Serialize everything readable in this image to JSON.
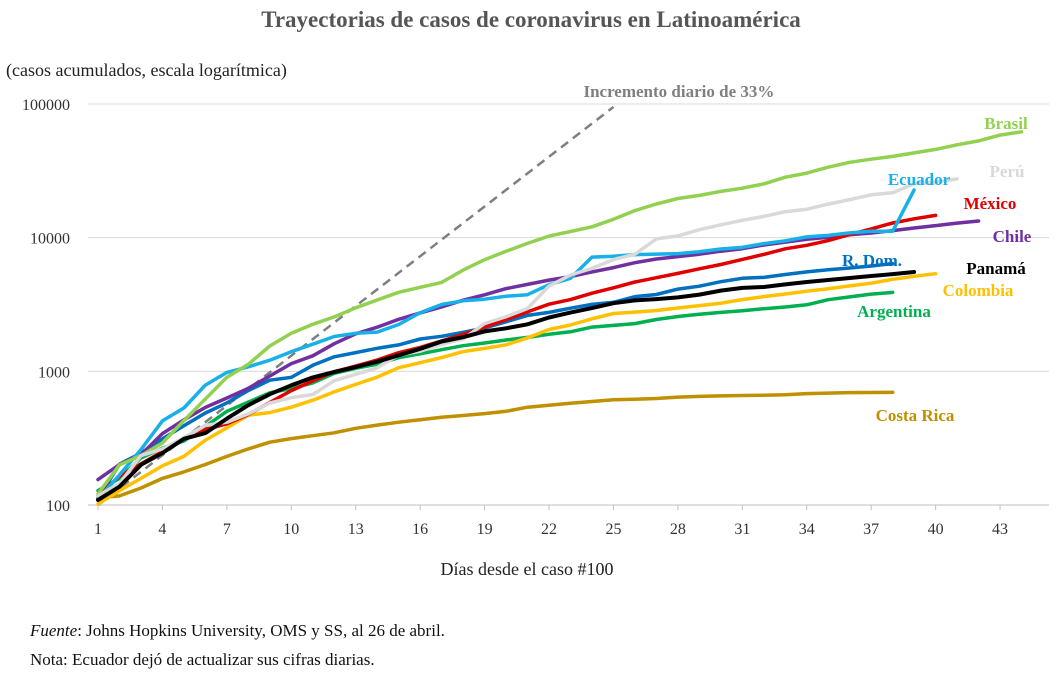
{
  "footer": {
    "source_label": "Fuente",
    "source_text": ": Johns Hopkins University, OMS y SS, al 26 de abril.",
    "note": "Nota: Ecuador dejó de actualizar sus cifras diarias."
  },
  "chart_data": {
    "type": "line",
    "title": "Trayectorias de casos de coronavirus en Latinoamérica",
    "subtitle": "(casos acumulados, escala logarítmica)",
    "xlabel": "Días desde el caso #100",
    "ylabel": "",
    "xlim": [
      1,
      45
    ],
    "ylim": [
      100,
      100000
    ],
    "yscale": "log",
    "x_ticks": [
      1,
      4,
      7,
      10,
      13,
      16,
      19,
      22,
      25,
      28,
      31,
      34,
      37,
      40,
      43
    ],
    "y_ticks": [
      100,
      1000,
      10000,
      100000
    ],
    "y_tick_labels": [
      "100",
      "1000",
      "10000",
      "100000"
    ],
    "grid": "horizontal",
    "reference_line": {
      "label": "Incremento diario de 33%",
      "color": "#7f7f7f",
      "x": [
        1,
        25
      ],
      "y": [
        100,
        95000
      ]
    },
    "series": [
      {
        "name": "Brasil",
        "color": "#92d050",
        "x": [
          1,
          2,
          3,
          4,
          5,
          6,
          7,
          8,
          9,
          10,
          11,
          12,
          13,
          14,
          15,
          16,
          17,
          18,
          19,
          20,
          21,
          22,
          23,
          24,
          25,
          26,
          27,
          28,
          29,
          30,
          31,
          32,
          33,
          34,
          35,
          36,
          37,
          38,
          39,
          40,
          41,
          42,
          43,
          44
        ],
        "y": [
          121,
          200,
          234,
          291,
          428,
          621,
          904,
          1128,
          1546,
          1924,
          2247,
          2554,
          2985,
          3417,
          3904,
          4256,
          4630,
          5717,
          6836,
          7910,
          9056,
          10278,
          11130,
          12056,
          13717,
          15927,
          17857,
          19638,
          20727,
          22192,
          23430,
          25262,
          28320,
          30425,
          33682,
          36658,
          38654,
          40581,
          43079,
          45757,
          49492,
          52995,
          58509,
          62000
        ]
      },
      {
        "name": "Perú",
        "color": "#d9d9d9",
        "x": [
          1,
          2,
          3,
          4,
          5,
          6,
          7,
          8,
          9,
          10,
          11,
          12,
          13,
          14,
          15,
          16,
          17,
          18,
          19,
          20,
          21,
          22,
          23,
          24,
          25,
          26,
          27,
          28,
          29,
          30,
          31,
          32,
          33,
          34,
          35,
          36,
          37,
          38,
          39,
          40,
          41
        ],
        "y": [
          117,
          145,
          234,
          263,
          318,
          395,
          416,
          480,
          580,
          635,
          671,
          852,
          950,
          1065,
          1323,
          1414,
          1595,
          1746,
          2281,
          2561,
          2954,
          4342,
          5256,
          5897,
          6848,
          7519,
          9784,
          10303,
          11475,
          12491,
          13489,
          14420,
          15628,
          16325,
          17837,
          19250,
          20914,
          21648,
          25331,
          26000,
          27517
        ]
      },
      {
        "name": "Ecuador",
        "color": "#17b0e8",
        "x": [
          1,
          2,
          3,
          4,
          5,
          6,
          7,
          8,
          9,
          10,
          11,
          12,
          13,
          14,
          15,
          16,
          17,
          18,
          19,
          20,
          21,
          22,
          23,
          24,
          25,
          26,
          27,
          28,
          29,
          30,
          31,
          32,
          33,
          34,
          35,
          36,
          37,
          38,
          39
        ],
        "y": [
          111,
          168,
          260,
          426,
          532,
          789,
          981,
          1082,
          1211,
          1403,
          1595,
          1823,
          1924,
          1966,
          2240,
          2748,
          3163,
          3368,
          3465,
          3646,
          3747,
          4450,
          4965,
          7161,
          7257,
          7466,
          7529,
          7603,
          7858,
          8225,
          8450,
          9022,
          9468,
          10128,
          10398,
          10850,
          11183,
          11183,
          22719
        ]
      },
      {
        "name": "México",
        "color": "#e00000",
        "x": [
          1,
          2,
          3,
          4,
          5,
          6,
          7,
          8,
          9,
          10,
          11,
          12,
          13,
          14,
          15,
          16,
          17,
          18,
          19,
          20,
          21,
          22,
          23,
          24,
          25,
          26,
          27,
          28,
          29,
          30,
          31,
          32,
          33,
          34,
          35,
          36,
          37,
          38,
          39,
          40
        ],
        "y": [
          118,
          164,
          203,
          251,
          316,
          367,
          405,
          475,
          585,
          717,
          848,
          993,
          1094,
          1215,
          1378,
          1510,
          1688,
          1890,
          2143,
          2439,
          2785,
          3181,
          3441,
          3844,
          4219,
          4661,
          5014,
          5399,
          5847,
          6297,
          6875,
          7497,
          8261,
          8772,
          9501,
          10544,
          11633,
          12872,
          13842,
          14677
        ]
      },
      {
        "name": "Chile",
        "color": "#7030a0",
        "x": [
          1,
          2,
          3,
          4,
          5,
          6,
          7,
          8,
          9,
          10,
          11,
          12,
          13,
          14,
          15,
          16,
          17,
          18,
          19,
          20,
          21,
          22,
          23,
          24,
          25,
          26,
          27,
          28,
          29,
          30,
          31,
          32,
          33,
          34,
          35,
          36,
          37,
          38,
          39,
          40,
          41,
          42
        ],
        "y": [
          155,
          201,
          238,
          342,
          434,
          537,
          632,
          746,
          922,
          1142,
          1306,
          1610,
          1909,
          2139,
          2449,
          2738,
          3031,
          3404,
          3737,
          4161,
          4471,
          4815,
          5116,
          5546,
          5972,
          6501,
          6927,
          7213,
          7525,
          7917,
          8273,
          8807,
          9252,
          9730,
          10088,
          10505,
          10832,
          11296,
          11812,
          12306,
          12858,
          13331
        ]
      },
      {
        "name": "R. Dom.",
        "color": "#0070c0",
        "x": [
          1,
          2,
          3,
          4,
          5,
          6,
          7,
          8,
          9,
          10,
          11,
          12,
          13,
          14,
          15,
          16,
          17,
          18,
          19,
          20,
          21,
          22,
          23,
          24,
          25,
          26,
          27,
          28,
          29,
          30,
          31,
          32,
          33,
          34,
          35,
          36,
          37,
          38
        ],
        "y": [
          112,
          202,
          245,
          312,
          392,
          488,
          581,
          719,
          859,
          901,
          1109,
          1284,
          1380,
          1488,
          1578,
          1745,
          1828,
          1956,
          2111,
          2349,
          2620,
          2759,
          2967,
          3167,
          3286,
          3614,
          3755,
          4126,
          4335,
          4680,
          4964,
          5044,
          5300,
          5543,
          5749,
          5926,
          6135,
          6400
        ]
      },
      {
        "name": "Panamá",
        "color": "#000000",
        "x": [
          1,
          2,
          3,
          4,
          5,
          6,
          7,
          8,
          9,
          10,
          11,
          12,
          13,
          14,
          15,
          16,
          17,
          18,
          19,
          20,
          21,
          22,
          23,
          24,
          25,
          26,
          27,
          28,
          29,
          30,
          31,
          32,
          33,
          34,
          35,
          36,
          37,
          38,
          39
        ],
        "y": [
          109,
          137,
          200,
          245,
          313,
          345,
          443,
          558,
          674,
          786,
          901,
          989,
          1075,
          1181,
          1317,
          1475,
          1673,
          1801,
          1988,
          2100,
          2249,
          2528,
          2752,
          2974,
          3234,
          3392,
          3472,
          3574,
          3751,
          4016,
          4210,
          4273,
          4467,
          4658,
          4821,
          4992,
          5166,
          5338,
          5538
        ]
      },
      {
        "name": "Colombia",
        "color": "#ffc000",
        "x": [
          1,
          2,
          3,
          4,
          5,
          6,
          7,
          8,
          9,
          10,
          11,
          12,
          13,
          14,
          15,
          16,
          17,
          18,
          19,
          20,
          21,
          22,
          23,
          24,
          25,
          26,
          27,
          28,
          29,
          30,
          31,
          32,
          33,
          34,
          35,
          36,
          37,
          38,
          39,
          40
        ],
        "y": [
          102,
          128,
          158,
          196,
          231,
          306,
          378,
          470,
          491,
          539,
          608,
          702,
          798,
          906,
          1065,
          1161,
          1267,
          1406,
          1485,
          1579,
          1780,
          2054,
          2223,
          2473,
          2709,
          2776,
          2852,
          2979,
          3105,
          3233,
          3439,
          3621,
          3792,
          3977,
          4149,
          4356,
          4561,
          4881,
          5142,
          5379
        ]
      },
      {
        "name": "Argentina",
        "color": "#00b050",
        "x": [
          1,
          2,
          3,
          4,
          5,
          6,
          7,
          8,
          9,
          10,
          11,
          12,
          13,
          14,
          15,
          16,
          17,
          18,
          19,
          20,
          21,
          22,
          23,
          24,
          25,
          26,
          27,
          28,
          29,
          30,
          31,
          32,
          33,
          34,
          35,
          36,
          37,
          38
        ],
        "y": [
          128,
          158,
          225,
          266,
          301,
          387,
          502,
          589,
          690,
          745,
          820,
          966,
          1054,
          1133,
          1265,
          1353,
          1451,
          1554,
          1628,
          1715,
          1795,
          1894,
          1975,
          2142,
          2208,
          2277,
          2443,
          2571,
          2669,
          2758,
          2839,
          2941,
          3031,
          3144,
          3435,
          3607,
          3780,
          3892
        ]
      },
      {
        "name": "Costa Rica",
        "color": "#bf9000",
        "x": [
          1,
          2,
          3,
          4,
          5,
          6,
          7,
          8,
          9,
          10,
          11,
          12,
          13,
          14,
          15,
          16,
          17,
          18,
          19,
          20,
          21,
          22,
          23,
          24,
          25,
          26,
          27,
          28,
          29,
          30,
          31,
          32,
          33,
          34,
          35,
          36,
          37,
          38
        ],
        "y": [
          113,
          117,
          134,
          158,
          177,
          201,
          231,
          263,
          295,
          314,
          330,
          347,
          375,
          396,
          416,
          435,
          454,
          467,
          483,
          502,
          539,
          558,
          577,
          595,
          612,
          618,
          626,
          642,
          649,
          655,
          660,
          662,
          669,
          681,
          687,
          693,
          695,
          697
        ]
      }
    ]
  }
}
